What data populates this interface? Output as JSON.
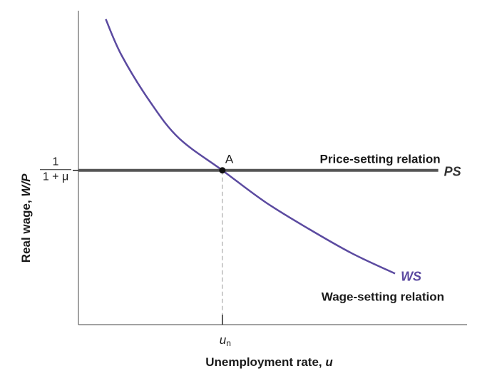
{
  "chart_data": {
    "type": "line",
    "xlabel_text": "Unemployment rate, ",
    "xlabel_var": "u",
    "ylabel_text": "Real wage, ",
    "ylabel_var": "W/P",
    "x_tick": {
      "label": "u",
      "subscript": "n"
    },
    "y_tick": {
      "numerator": "1",
      "denominator": "1 + μ"
    },
    "equilibrium": {
      "label": "A",
      "x": 1.0,
      "y": 1.0
    },
    "series": [
      {
        "name": "PS",
        "description_label": "Price-setting relation",
        "color": "#555555",
        "x": [
          0.0,
          1.0,
          1.0,
          2.5
        ],
        "y": [
          1.0,
          1.0,
          1.0,
          1.0
        ]
      },
      {
        "name": "WS",
        "description_label": "Wage-setting relation",
        "color": "#5b4aa0",
        "x": [
          0.19,
          0.3,
          0.5,
          0.7,
          1.0,
          1.3,
          1.6,
          1.9,
          2.2
        ],
        "y": [
          2.42,
          2.08,
          1.64,
          1.3,
          1.0,
          0.7,
          0.45,
          0.22,
          0.03
        ]
      }
    ],
    "xlim": [
      0,
      2.7
    ],
    "ylim": [
      -0.45,
      2.5
    ],
    "grid": false
  }
}
